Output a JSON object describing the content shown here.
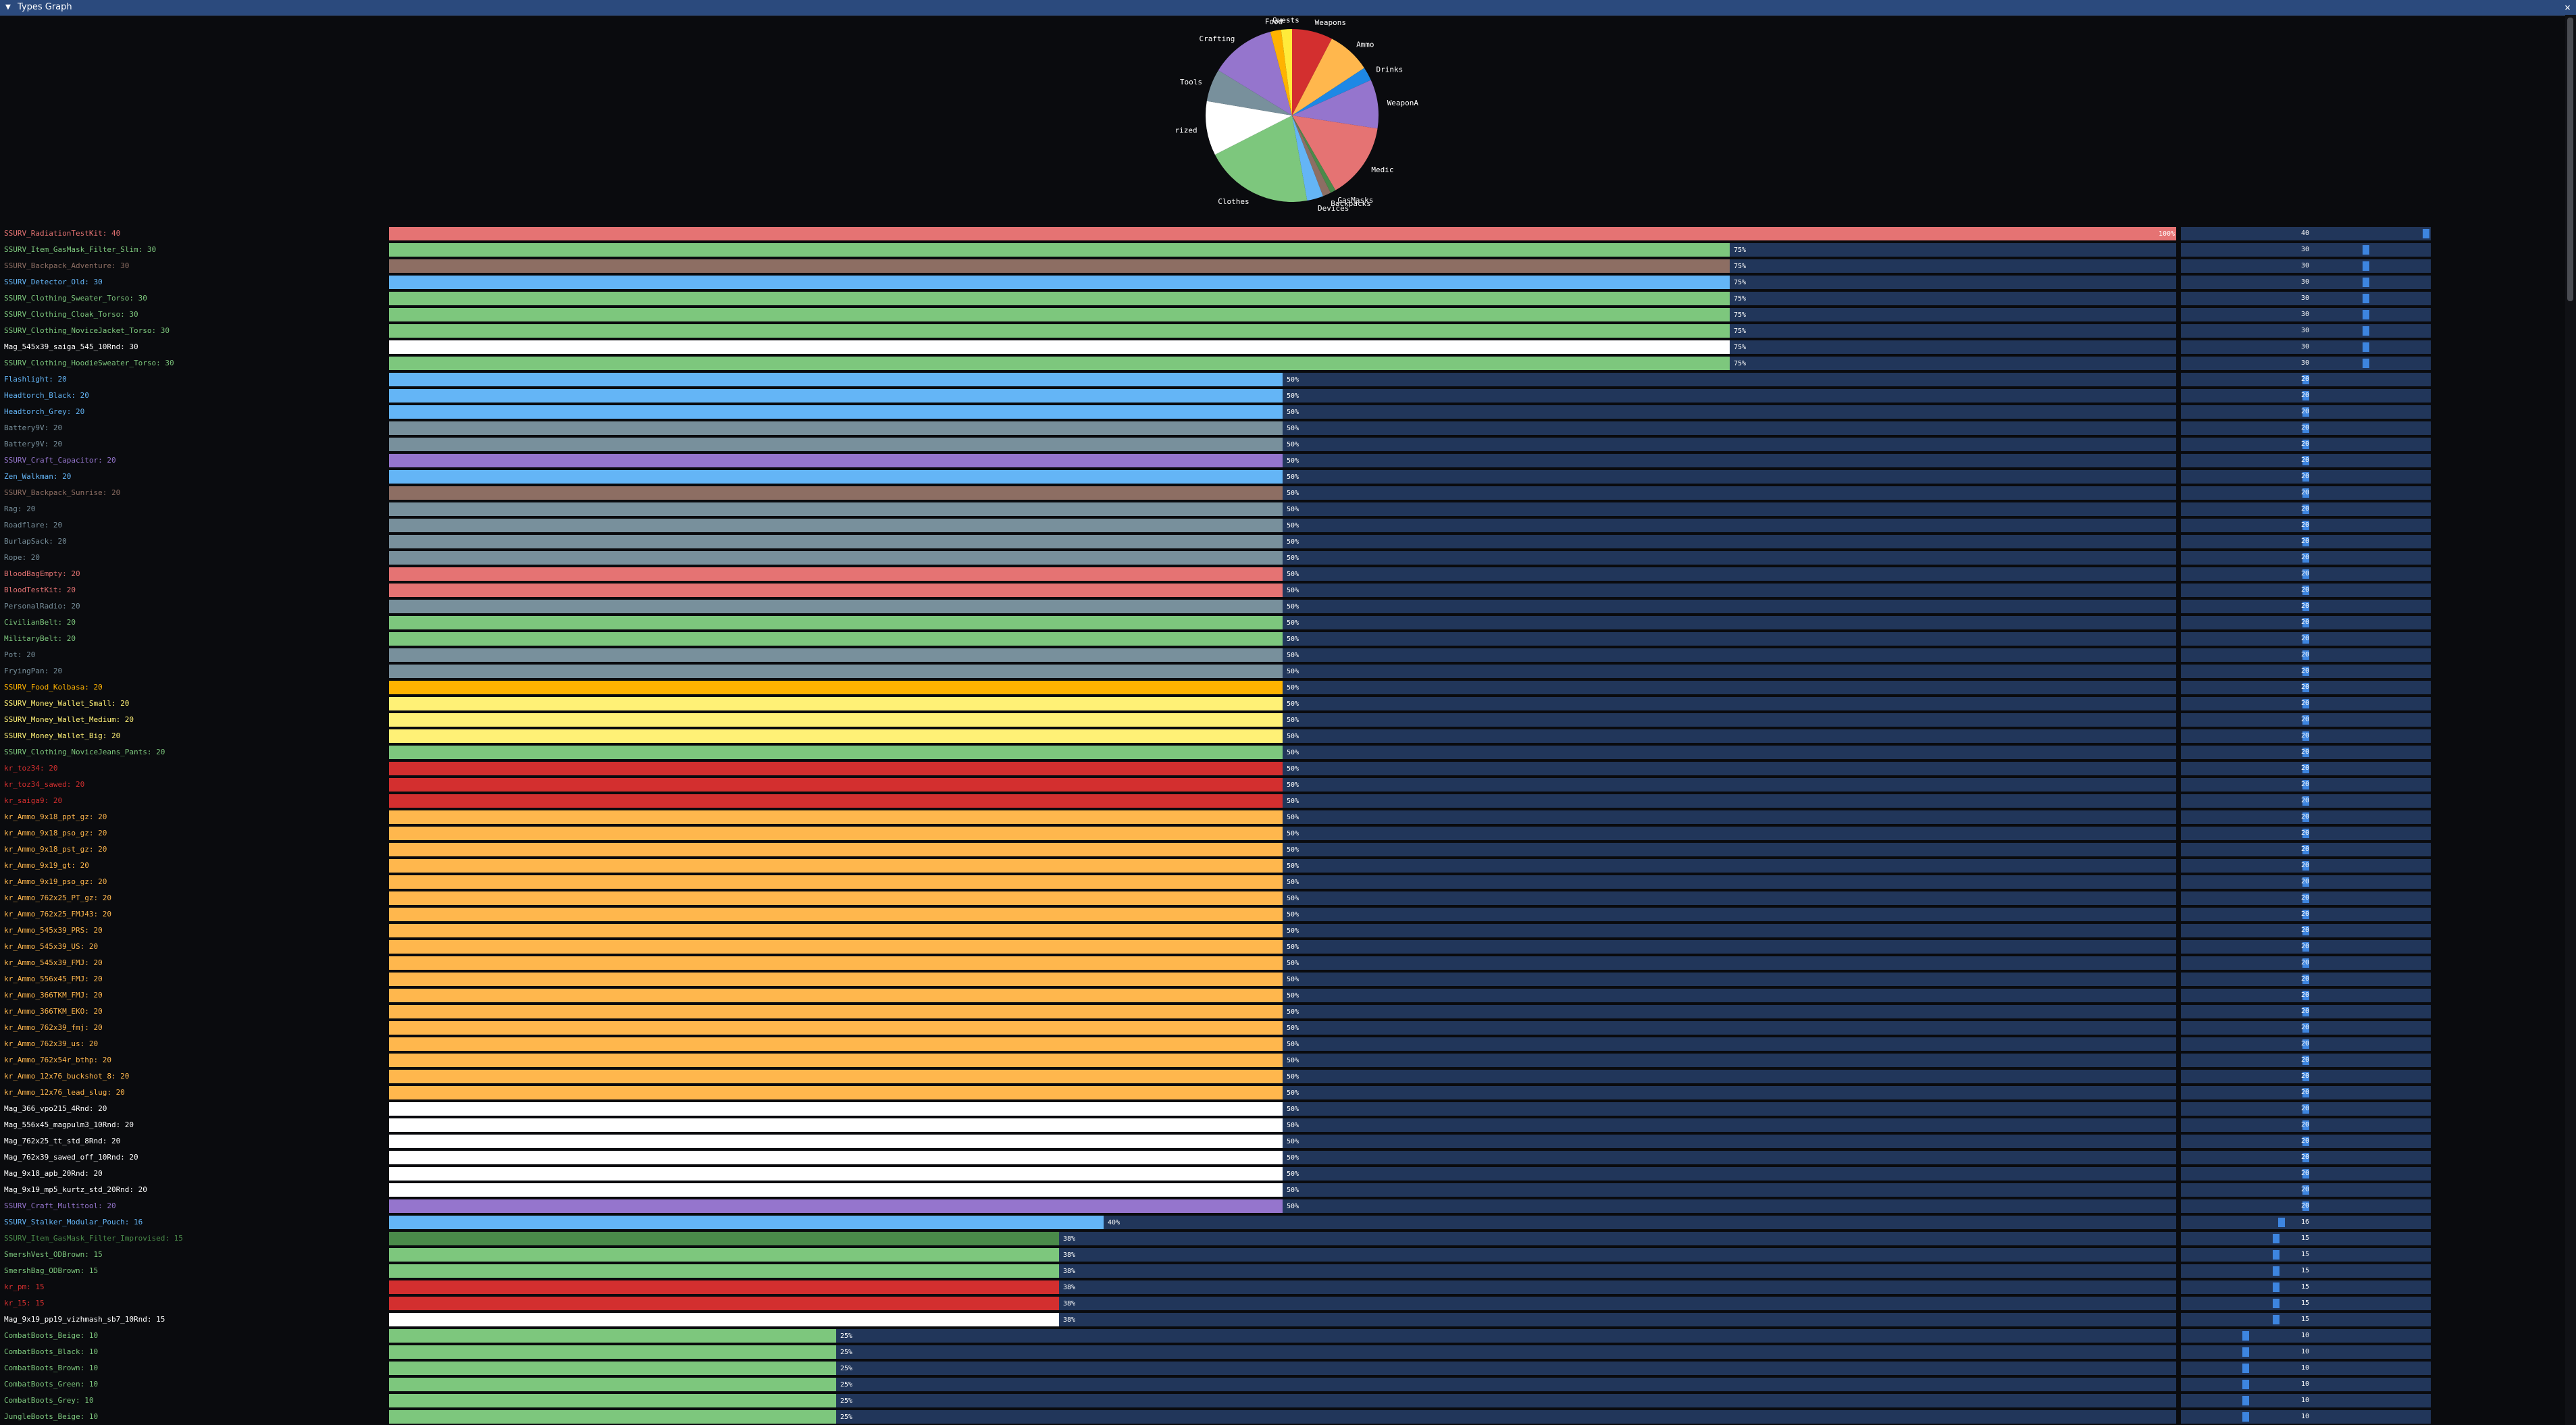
{
  "window": {
    "title": "Types Graph",
    "close_glyph": "×",
    "collapse_glyph": "▼"
  },
  "colors": {
    "background": "#0a0b0e",
    "titlebar": "#2b4a7d",
    "track": "#21365a",
    "slider_grab": "#3d85e0"
  },
  "category_colors": {
    "medic": "#e57373",
    "clothes": "#7dc77d",
    "backpacks": "#8d6e63",
    "devices": "#64b5f6",
    "tools": "#78909c",
    "weapons": "#d32f2f",
    "ammo": "#ffb74d",
    "food": "#ffb300",
    "uncategorized": "#ffffff",
    "crafting": "#9575cd",
    "money": "#fff176",
    "drinks": "#1e88e5",
    "weaponatt": "#9575cd",
    "quests": "#ffeb3b",
    "gasmasks": "#4a8a4a"
  },
  "chart_data": {
    "type": "pie",
    "title": "",
    "slices": [
      {
        "label": "Weapons",
        "value": 7.5,
        "color": "#d32f2f"
      },
      {
        "label": "Ammo",
        "value": 8,
        "color": "#ffb74d"
      },
      {
        "label": "Drinks",
        "value": 2.5,
        "color": "#1e88e5"
      },
      {
        "label": "WeaponAtt",
        "value": 9,
        "color": "#9575cd"
      },
      {
        "label": "Medic",
        "value": 14,
        "color": "#e57373"
      },
      {
        "label": "GasMasks",
        "value": 1,
        "color": "#4a8a4a"
      },
      {
        "label": "Backpacks",
        "value": 1.5,
        "color": "#8d6e63"
      },
      {
        "label": "Devices",
        "value": 3,
        "color": "#64b5f6"
      },
      {
        "label": "Clothes",
        "value": 20,
        "color": "#7dc77d"
      },
      {
        "label": "Uncategorized",
        "value": 10,
        "color": "#ffffff"
      },
      {
        "label": "Tools",
        "value": 6,
        "color": "#78909c"
      },
      {
        "label": "Crafting",
        "value": 12,
        "color": "#9575cd"
      },
      {
        "label": "Food",
        "value": 2,
        "color": "#ffb300"
      },
      {
        "label": "Quests",
        "value": 2,
        "color": "#ffeb3b"
      }
    ]
  },
  "bar_scale": {
    "max_count": 40,
    "slider_max": 40
  },
  "rows": [
    {
      "label": "SSURV_RadiationTestKit: 40",
      "count": 40,
      "pct": "100%",
      "color": "#e57373"
    },
    {
      "label": "SSURV_Item_GasMask_Filter_Slim: 30",
      "count": 30,
      "pct": "75%",
      "color": "#7dc77d"
    },
    {
      "label": "SSURV_Backpack_Adventure: 30",
      "count": 30,
      "pct": "75%",
      "color": "#8d6e63"
    },
    {
      "label": "SSURV_Detector_Old: 30",
      "count": 30,
      "pct": "75%",
      "color": "#64b5f6"
    },
    {
      "label": "SSURV_Clothing_Sweater_Torso: 30",
      "count": 30,
      "pct": "75%",
      "color": "#7dc77d"
    },
    {
      "label": "SSURV_Clothing_Cloak_Torso: 30",
      "count": 30,
      "pct": "75%",
      "color": "#7dc77d"
    },
    {
      "label": "SSURV_Clothing_NoviceJacket_Torso: 30",
      "count": 30,
      "pct": "75%",
      "color": "#7dc77d"
    },
    {
      "label": "Mag_545x39_saiga_545_10Rnd: 30",
      "count": 30,
      "pct": "75%",
      "color": "#ffffff"
    },
    {
      "label": "SSURV_Clothing_HoodieSweater_Torso: 30",
      "count": 30,
      "pct": "75%",
      "color": "#7dc77d"
    },
    {
      "label": "Flashlight: 20",
      "count": 20,
      "pct": "50%",
      "color": "#64b5f6"
    },
    {
      "label": "Headtorch_Black: 20",
      "count": 20,
      "pct": "50%",
      "color": "#64b5f6"
    },
    {
      "label": "Headtorch_Grey: 20",
      "count": 20,
      "pct": "50%",
      "color": "#64b5f6"
    },
    {
      "label": "Battery9V: 20",
      "count": 20,
      "pct": "50%",
      "color": "#78909c"
    },
    {
      "label": "Battery9V: 20",
      "count": 20,
      "pct": "50%",
      "color": "#78909c"
    },
    {
      "label": "SSURV_Craft_Capacitor: 20",
      "count": 20,
      "pct": "50%",
      "color": "#9575cd"
    },
    {
      "label": "Zen_Walkman: 20",
      "count": 20,
      "pct": "50%",
      "color": "#64b5f6"
    },
    {
      "label": "SSURV_Backpack_Sunrise: 20",
      "count": 20,
      "pct": "50%",
      "color": "#8d6e63"
    },
    {
      "label": "Rag: 20",
      "count": 20,
      "pct": "50%",
      "color": "#78909c"
    },
    {
      "label": "Roadflare: 20",
      "count": 20,
      "pct": "50%",
      "color": "#78909c"
    },
    {
      "label": "BurlapSack: 20",
      "count": 20,
      "pct": "50%",
      "color": "#78909c"
    },
    {
      "label": "Rope: 20",
      "count": 20,
      "pct": "50%",
      "color": "#78909c"
    },
    {
      "label": "BloodBagEmpty: 20",
      "count": 20,
      "pct": "50%",
      "color": "#e57373"
    },
    {
      "label": "BloodTestKit: 20",
      "count": 20,
      "pct": "50%",
      "color": "#e57373"
    },
    {
      "label": "PersonalRadio: 20",
      "count": 20,
      "pct": "50%",
      "color": "#78909c"
    },
    {
      "label": "CivilianBelt: 20",
      "count": 20,
      "pct": "50%",
      "color": "#7dc77d"
    },
    {
      "label": "MilitaryBelt: 20",
      "count": 20,
      "pct": "50%",
      "color": "#7dc77d"
    },
    {
      "label": "Pot: 20",
      "count": 20,
      "pct": "50%",
      "color": "#78909c"
    },
    {
      "label": "FryingPan: 20",
      "count": 20,
      "pct": "50%",
      "color": "#78909c"
    },
    {
      "label": "SSURV_Food_Kolbasa: 20",
      "count": 20,
      "pct": "50%",
      "color": "#ffb300"
    },
    {
      "label": "SSURV_Money_Wallet_Small: 20",
      "count": 20,
      "pct": "50%",
      "color": "#fff176"
    },
    {
      "label": "SSURV_Money_Wallet_Medium: 20",
      "count": 20,
      "pct": "50%",
      "color": "#fff176"
    },
    {
      "label": "SSURV_Money_Wallet_Big: 20",
      "count": 20,
      "pct": "50%",
      "color": "#fff176"
    },
    {
      "label": "SSURV_Clothing_NoviceJeans_Pants: 20",
      "count": 20,
      "pct": "50%",
      "color": "#7dc77d"
    },
    {
      "label": "kr_toz34: 20",
      "count": 20,
      "pct": "50%",
      "color": "#d32f2f"
    },
    {
      "label": "kr_toz34_sawed: 20",
      "count": 20,
      "pct": "50%",
      "color": "#d32f2f"
    },
    {
      "label": "kr_saiga9: 20",
      "count": 20,
      "pct": "50%",
      "color": "#d32f2f"
    },
    {
      "label": "kr_Ammo_9x18_ppt_gz: 20",
      "count": 20,
      "pct": "50%",
      "color": "#ffb74d"
    },
    {
      "label": "kr_Ammo_9x18_pso_gz: 20",
      "count": 20,
      "pct": "50%",
      "color": "#ffb74d"
    },
    {
      "label": "kr_Ammo_9x18_pst_gz: 20",
      "count": 20,
      "pct": "50%",
      "color": "#ffb74d"
    },
    {
      "label": "kr_Ammo_9x19_gt: 20",
      "count": 20,
      "pct": "50%",
      "color": "#ffb74d"
    },
    {
      "label": "kr_Ammo_9x19_pso_gz: 20",
      "count": 20,
      "pct": "50%",
      "color": "#ffb74d"
    },
    {
      "label": "kr_Ammo_762x25_PT_gz: 20",
      "count": 20,
      "pct": "50%",
      "color": "#ffb74d"
    },
    {
      "label": "kr_Ammo_762x25_FMJ43: 20",
      "count": 20,
      "pct": "50%",
      "color": "#ffb74d"
    },
    {
      "label": "kr_Ammo_545x39_PRS: 20",
      "count": 20,
      "pct": "50%",
      "color": "#ffb74d"
    },
    {
      "label": "kr_Ammo_545x39_US: 20",
      "count": 20,
      "pct": "50%",
      "color": "#ffb74d"
    },
    {
      "label": "kr_Ammo_545x39_FMJ: 20",
      "count": 20,
      "pct": "50%",
      "color": "#ffb74d"
    },
    {
      "label": "kr_Ammo_556x45_FMJ: 20",
      "count": 20,
      "pct": "50%",
      "color": "#ffb74d"
    },
    {
      "label": "kr_Ammo_366TKM_FMJ: 20",
      "count": 20,
      "pct": "50%",
      "color": "#ffb74d"
    },
    {
      "label": "kr_Ammo_366TKM_EKO: 20",
      "count": 20,
      "pct": "50%",
      "color": "#ffb74d"
    },
    {
      "label": "kr_Ammo_762x39_fmj: 20",
      "count": 20,
      "pct": "50%",
      "color": "#ffb74d"
    },
    {
      "label": "kr_Ammo_762x39_us: 20",
      "count": 20,
      "pct": "50%",
      "color": "#ffb74d"
    },
    {
      "label": "kr_Ammo_762x54r_bthp: 20",
      "count": 20,
      "pct": "50%",
      "color": "#ffb74d"
    },
    {
      "label": "kr_Ammo_12x76_buckshot_8: 20",
      "count": 20,
      "pct": "50%",
      "color": "#ffb74d"
    },
    {
      "label": "kr_Ammo_12x76_lead_slug: 20",
      "count": 20,
      "pct": "50%",
      "color": "#ffb74d"
    },
    {
      "label": "Mag_366_vpo215_4Rnd: 20",
      "count": 20,
      "pct": "50%",
      "color": "#ffffff"
    },
    {
      "label": "Mag_556x45_magpulm3_10Rnd: 20",
      "count": 20,
      "pct": "50%",
      "color": "#ffffff"
    },
    {
      "label": "Mag_762x25_tt_std_8Rnd: 20",
      "count": 20,
      "pct": "50%",
      "color": "#ffffff"
    },
    {
      "label": "Mag_762x39_sawed_off_10Rnd: 20",
      "count": 20,
      "pct": "50%",
      "color": "#ffffff"
    },
    {
      "label": "Mag_9x18_apb_20Rnd: 20",
      "count": 20,
      "pct": "50%",
      "color": "#ffffff"
    },
    {
      "label": "Mag_9x19_mp5_kurtz_std_20Rnd: 20",
      "count": 20,
      "pct": "50%",
      "color": "#ffffff"
    },
    {
      "label": "SSURV_Craft_Multitool: 20",
      "count": 20,
      "pct": "50%",
      "color": "#9575cd"
    },
    {
      "label": "SSURV_Stalker_Modular_Pouch: 16",
      "count": 16,
      "pct": "40%",
      "color": "#64b5f6"
    },
    {
      "label": "SSURV_Item_GasMask_Filter_Improvised: 15",
      "count": 15,
      "pct": "38%",
      "color": "#4a8a4a"
    },
    {
      "label": "SmershVest_ODBrown: 15",
      "count": 15,
      "pct": "38%",
      "color": "#7dc77d"
    },
    {
      "label": "SmershBag_ODBrown: 15",
      "count": 15,
      "pct": "38%",
      "color": "#7dc77d"
    },
    {
      "label": "kr_pm: 15",
      "count": 15,
      "pct": "38%",
      "color": "#d32f2f"
    },
    {
      "label": "kr_15: 15",
      "count": 15,
      "pct": "38%",
      "color": "#d32f2f"
    },
    {
      "label": "Mag_9x19_pp19_vizhmash_sb7_10Rnd: 15",
      "count": 15,
      "pct": "38%",
      "color": "#ffffff"
    },
    {
      "label": "CombatBoots_Beige: 10",
      "count": 10,
      "pct": "25%",
      "color": "#7dc77d"
    },
    {
      "label": "CombatBoots_Black: 10",
      "count": 10,
      "pct": "25%",
      "color": "#7dc77d"
    },
    {
      "label": "CombatBoots_Brown: 10",
      "count": 10,
      "pct": "25%",
      "color": "#7dc77d"
    },
    {
      "label": "CombatBoots_Green: 10",
      "count": 10,
      "pct": "25%",
      "color": "#7dc77d"
    },
    {
      "label": "CombatBoots_Grey: 10",
      "count": 10,
      "pct": "25%",
      "color": "#7dc77d"
    },
    {
      "label": "JungleBoots_Beige: 10",
      "count": 10,
      "pct": "25%",
      "color": "#7dc77d"
    }
  ]
}
